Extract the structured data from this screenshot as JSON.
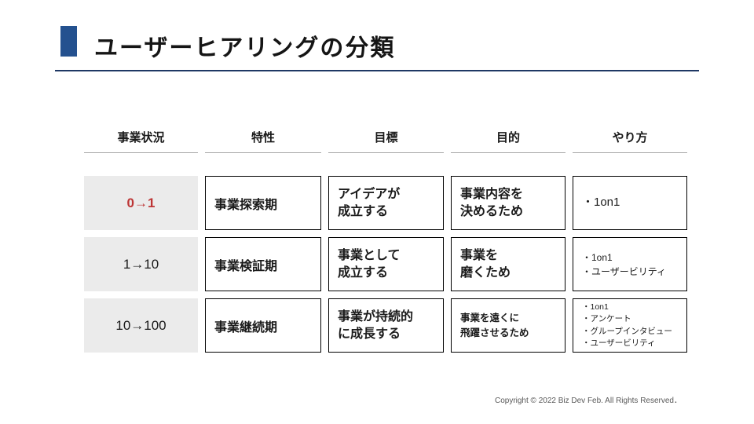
{
  "slide": {
    "title": "ユーザーヒアリングの分類",
    "footer": "Copyright © 2022 Biz Dev Feb. All Rights Reserved．"
  },
  "colors": {
    "accent_blue": "#24518F",
    "title_rule_navy": "#1F3864",
    "stage_cell_gray": "#EBEBEB",
    "highlight_red": "#BD3434",
    "cell_border_black": "#000000",
    "header_underline_gray": "#A6A6A6",
    "footer_gray": "#595959"
  },
  "table": {
    "headers": [
      "事業状況",
      "特性",
      "目標",
      "目的",
      "やり方"
    ],
    "rows": [
      {
        "stage": "0→1",
        "feature": "事業探索期",
        "goal_line1": "アイデアが",
        "goal_line2": "成立する",
        "purpose_line1": "事業内容を",
        "purpose_line2": "決めるため",
        "methods": [
          "・1on1"
        ]
      },
      {
        "stage": "1→10",
        "feature": "事業検証期",
        "goal_line1": "事業として",
        "goal_line2": "成立する",
        "purpose_line1": "事業を",
        "purpose_line2": "磨くため",
        "methods": [
          "・1on1",
          "・ユーザービリティ"
        ]
      },
      {
        "stage": "10→100",
        "feature": "事業継続期",
        "goal_line1": "事業が持続的",
        "goal_line2": "に成長する",
        "purpose_line1": "事業を遠くに",
        "purpose_line2": "飛躍させるため",
        "methods": [
          "・1on1",
          "・アンケート",
          "・グループインタビュー",
          "・ユーザービリティ"
        ]
      }
    ]
  }
}
